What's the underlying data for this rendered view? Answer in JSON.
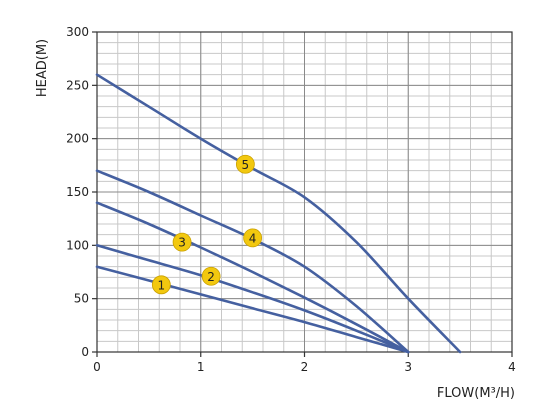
{
  "chart_data": {
    "type": "line",
    "title": "",
    "xlabel": "FLOW(M³/H)",
    "ylabel": "HEAD(M)",
    "xlim": [
      0,
      4
    ],
    "ylim": [
      0,
      300
    ],
    "x_ticks": [
      0,
      1,
      2,
      3,
      4
    ],
    "y_ticks": [
      0,
      50,
      100,
      150,
      200,
      250,
      300
    ],
    "x_minor_step": 0.2,
    "y_minor_step": 10,
    "grid": true,
    "line_color": "#4560a0",
    "marker_color": "#f2c80f",
    "series": [
      {
        "name": "1",
        "marker": {
          "x": 0.62,
          "y": 63
        },
        "points": [
          [
            0,
            80
          ],
          [
            0.5,
            67
          ],
          [
            1.0,
            54
          ],
          [
            1.5,
            41
          ],
          [
            2.0,
            28
          ],
          [
            2.5,
            14
          ],
          [
            3.0,
            0
          ]
        ]
      },
      {
        "name": "2",
        "marker": {
          "x": 1.1,
          "y": 71
        },
        "points": [
          [
            0,
            100
          ],
          [
            0.5,
            86
          ],
          [
            1.0,
            72
          ],
          [
            1.5,
            56
          ],
          [
            2.0,
            39
          ],
          [
            2.5,
            20
          ],
          [
            3.0,
            0
          ]
        ]
      },
      {
        "name": "3",
        "marker": {
          "x": 0.82,
          "y": 103
        },
        "points": [
          [
            0,
            140
          ],
          [
            0.5,
            120
          ],
          [
            1.0,
            98
          ],
          [
            1.5,
            75
          ],
          [
            2.0,
            51
          ],
          [
            2.5,
            26
          ],
          [
            3.0,
            0
          ]
        ]
      },
      {
        "name": "4",
        "marker": {
          "x": 1.5,
          "y": 107
        },
        "points": [
          [
            0,
            170
          ],
          [
            0.5,
            150
          ],
          [
            1.0,
            128
          ],
          [
            1.5,
            106
          ],
          [
            2.0,
            80
          ],
          [
            2.5,
            43
          ],
          [
            3.0,
            0
          ]
        ]
      },
      {
        "name": "5",
        "marker": {
          "x": 1.43,
          "y": 176
        },
        "points": [
          [
            0,
            260
          ],
          [
            0.5,
            230
          ],
          [
            1.0,
            200
          ],
          [
            1.5,
            172
          ],
          [
            2.0,
            145
          ],
          [
            2.5,
            103
          ],
          [
            3.0,
            50
          ],
          [
            3.5,
            0
          ]
        ]
      }
    ]
  }
}
